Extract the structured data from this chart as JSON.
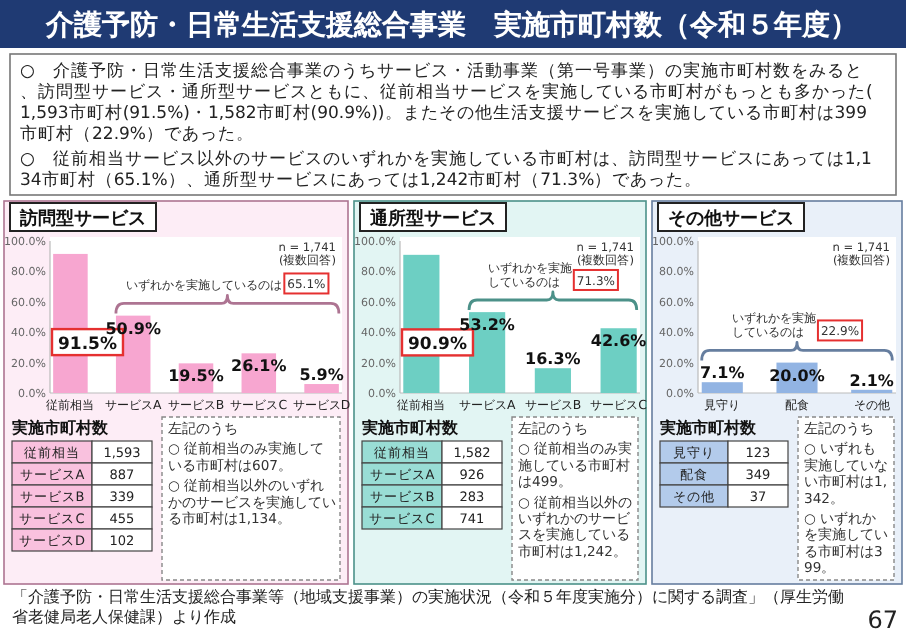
{
  "chart_data": [
    {
      "type": "other",
      "title": "介護予防・日常生活支援総合事業　実施市町村数（令和５年度）",
      "annotations": [
        "○　介護予防・日常生活支援総合事業のうちサービス・活動事業（第一号事業）の実施市町村数をみると、訪問型サービス・通所型サービスともに、従前相当サービスを実施している市町村がもっとも多かった(1,593市町村(91.5%)・1,582市町村(90.9%))。またその他生活支援サービスを実施している市町村は399市町村（22.9%）であった。",
        "○　従前相当サービス以外のサービスのいずれかを実施している市町村は、訪問型サービスにあっては1,134市町村（65.1%）、通所型サービスにあっては1,242市町村（71.3%）であった。",
        "「介護予防・日常生活支援総合事業等（地域支援事業）の実施状況（令和５年度実施分）に関する調査」（厚生労働省老健局老人保健課）より作成",
        "67"
      ]
    },
    {
      "type": "bar",
      "title": "訪問型サービス",
      "categories": [
        "従前相当",
        "サービスA",
        "サービスB",
        "サービスC",
        "サービスD"
      ],
      "values": [
        91.5,
        50.9,
        19.5,
        26.1,
        5.9
      ],
      "value_labels": [
        "91.5%",
        "50.9%",
        "19.5%",
        "26.1%",
        "5.9%"
      ],
      "color": "#f7a6d0",
      "ylim": [
        0,
        100
      ],
      "yticks": [
        {
          "value": 0,
          "label": "0.0%"
        },
        {
          "value": 20,
          "label": "20.0%"
        },
        {
          "value": 40,
          "label": "40.0%"
        },
        {
          "value": 60,
          "label": "60.0%"
        },
        {
          "value": 80,
          "label": "80.0%"
        },
        {
          "value": 100,
          "label": "100.0%"
        }
      ],
      "annotations": [
        "n = 1,741",
        "(複数回答)",
        "いずれかを実施しているのは",
        "65.1%",
        "実施市町村数",
        "左記のうち",
        "○ 従前相当のみ実施している市町村は607。",
        "○ 従前相当以外のいずれかのサービスを実施している市町村は1,134。",
        "1,593",
        "887",
        "339",
        "455",
        "102"
      ]
    },
    {
      "type": "bar",
      "title": "通所型サービス",
      "categories": [
        "従前相当",
        "サービスA",
        "サービスB",
        "サービスC"
      ],
      "values": [
        90.9,
        53.2,
        16.3,
        42.6
      ],
      "value_labels": [
        "90.9%",
        "53.2%",
        "16.3%",
        "42.6%"
      ],
      "color": "#6dcfc3",
      "ylim": [
        0,
        100
      ],
      "yticks": [
        {
          "value": 0,
          "label": "0.0%"
        },
        {
          "value": 20,
          "label": "20.0%"
        },
        {
          "value": 40,
          "label": "40.0%"
        },
        {
          "value": 60,
          "label": "60.0%"
        },
        {
          "value": 80,
          "label": "80.0%"
        },
        {
          "value": 100,
          "label": "100.0%"
        }
      ],
      "annotations": [
        "n = 1,741",
        "(複数回答)",
        "いずれかを実施しているのは",
        "71.3%",
        "実施市町村数",
        "左記のうち",
        "○ 従前相当のみ実施している市町村は499。",
        "○ 従前相当以外のいずれかのサービスを実施している市町村は1,242。",
        "1,582",
        "926",
        "283",
        "741"
      ]
    },
    {
      "type": "bar",
      "title": "その他サービス",
      "categories": [
        "見守り",
        "配食",
        "その他"
      ],
      "values": [
        7.1,
        20.0,
        2.1
      ],
      "value_labels": [
        "7.1%",
        "20.0%",
        "2.1%"
      ],
      "color": "#92b4e3",
      "ylim": [
        0,
        100
      ],
      "yticks": [
        {
          "value": 0,
          "label": "0.0%"
        },
        {
          "value": 20,
          "label": "20.0%"
        },
        {
          "value": 40,
          "label": "40.0%"
        },
        {
          "value": 60,
          "label": "60.0%"
        },
        {
          "value": 80,
          "label": "80.0%"
        },
        {
          "value": 100,
          "label": "100.0%"
        }
      ],
      "annotations": [
        "n = 1,741",
        "(複数回答)",
        "いずれかを実施しているのは",
        "22.9%",
        "実施市町村数",
        "左記のうち",
        "○ いずれも実施していない市町村は1,342。",
        "○ いずれかを実施している市町村は399。",
        "123",
        "349",
        "37"
      ]
    }
  ]
}
